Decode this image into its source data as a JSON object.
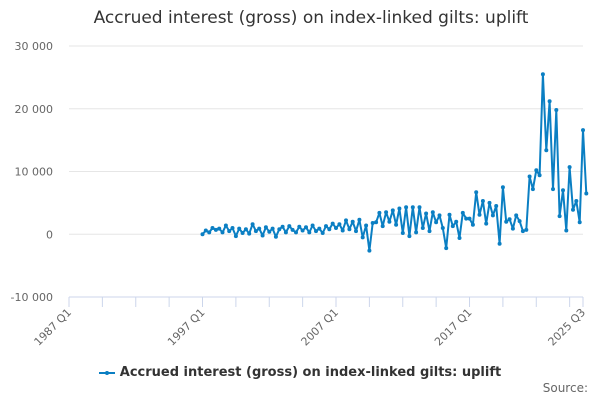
{
  "title": "Accrued interest (gross) on index-linked gilts: uplift",
  "legend": {
    "label": "Accrued interest (gross) on index-linked gilts: uplift"
  },
  "source_label": "Source:",
  "colors": {
    "series": "#0b7fc3",
    "grid": "#e6e6e6",
    "axis": "#ccd6eb",
    "text": "#666666"
  },
  "y_axis": {
    "ticks": [
      "30 000",
      "20 000",
      "10 000",
      "0",
      "-10 000"
    ]
  },
  "x_axis": {
    "ticks": [
      "1987 Q1",
      "1997 Q1",
      "2007 Q1",
      "2017 Q1",
      "2025 Q3"
    ]
  },
  "chart_data": {
    "type": "line",
    "title": "Accrued interest (gross) on index-linked gilts: uplift",
    "xlabel": "",
    "ylabel": "",
    "ylim": [
      -10000,
      30000
    ],
    "x_range": [
      "1987 Q1",
      "2025 Q3"
    ],
    "x_tick_labels": [
      "1987 Q1",
      "1997 Q1",
      "2007 Q1",
      "2017 Q1",
      "2025 Q3"
    ],
    "y_tick_labels": [
      "-10 000",
      "0",
      "10 000",
      "20 000",
      "30 000"
    ],
    "grid": true,
    "legend_position": "bottom",
    "series": [
      {
        "name": "Accrued interest (gross) on index-linked gilts: uplift",
        "start": "1997 Q1",
        "frequency": "quarterly",
        "values": [
          0,
          600,
          300,
          1000,
          700,
          900,
          300,
          1400,
          500,
          1000,
          -300,
          900,
          200,
          800,
          100,
          1600,
          500,
          900,
          -200,
          1100,
          400,
          900,
          -400,
          800,
          1200,
          300,
          1300,
          700,
          300,
          1200,
          600,
          1100,
          300,
          1400,
          500,
          900,
          200,
          1300,
          800,
          1700,
          1000,
          1600,
          600,
          2200,
          800,
          2000,
          500,
          2300,
          -500,
          1400,
          -2600,
          1800,
          1900,
          3400,
          1300,
          3500,
          2000,
          3800,
          1500,
          4100,
          200,
          4300,
          -300,
          4300,
          300,
          4300,
          1000,
          3300,
          500,
          3500,
          1900,
          3000,
          1000,
          -2200,
          3100,
          1300,
          2000,
          -600,
          3400,
          2500,
          2500,
          1500,
          6700,
          3100,
          5300,
          1700,
          5000,
          3000,
          4500,
          -1500,
          7500,
          2000,
          2400,
          900,
          3000,
          2100,
          500,
          700,
          9200,
          7200,
          10200,
          9400,
          25500,
          13400,
          21200,
          7200,
          19800,
          2900,
          7000,
          600,
          10700,
          3900,
          5300,
          1900,
          16600,
          6500
        ]
      }
    ]
  }
}
